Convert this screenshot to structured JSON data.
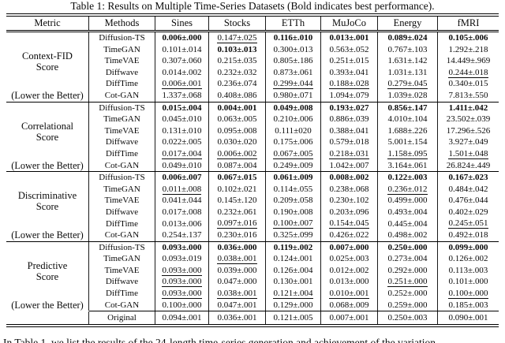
{
  "title": "Table 1: Results on Multiple Time-Series Datasets (Bold indicates best performance).",
  "body_text": "In Table 1, we list the results of the 24-length time-series generation and achievement of the variation",
  "table": {
    "headers": [
      "Metric",
      "Methods",
      "Sines",
      "Stocks",
      "ETTh",
      "MuJoCo",
      "Energy",
      "fMRI"
    ],
    "style_legend": {
      "b": "bold = best performance",
      "u": "underline = second best"
    },
    "sections": [
      {
        "metric_lines": [
          "Context-FID",
          "Score"
        ],
        "note": "(Lower the Better)",
        "rows": [
          {
            "method": "Diffusion-TS",
            "cells": [
              [
                "0.006±.000",
                "b"
              ],
              [
                "0.147±.025",
                "u"
              ],
              [
                "0.116±.010",
                "b"
              ],
              [
                "0.013±.001",
                "b"
              ],
              [
                "0.089±.024",
                "b"
              ],
              [
                "0.105±.006",
                "b"
              ]
            ]
          },
          {
            "method": "TimeGAN",
            "cells": [
              [
                "0.101±.014",
                ""
              ],
              [
                "0.103±.013",
                "b"
              ],
              [
                "0.300±.013",
                ""
              ],
              [
                "0.563±.052",
                ""
              ],
              [
                "0.767±.103",
                ""
              ],
              [
                "1.292±.218",
                ""
              ]
            ]
          },
          {
            "method": "TimeVAE",
            "cells": [
              [
                "0.307±.060",
                ""
              ],
              [
                "0.215±.035",
                ""
              ],
              [
                "0.805±.186",
                ""
              ],
              [
                "0.251±.015",
                ""
              ],
              [
                "1.631±.142",
                ""
              ],
              [
                "14.449±.969",
                ""
              ]
            ]
          },
          {
            "method": "Diffwave",
            "cells": [
              [
                "0.014±.002",
                ""
              ],
              [
                "0.232±.032",
                ""
              ],
              [
                "0.873±.061",
                ""
              ],
              [
                "0.393±.041",
                ""
              ],
              [
                "1.031±.131",
                ""
              ],
              [
                "0.244±.018",
                "u"
              ]
            ]
          },
          {
            "method": "DiffTime",
            "cells": [
              [
                "0.006±.001",
                "u"
              ],
              [
                "0.236±.074",
                ""
              ],
              [
                "0.299±.044",
                "u"
              ],
              [
                "0.188±.028",
                "u"
              ],
              [
                "0.279±.045",
                "u"
              ],
              [
                "0.340±.015",
                ""
              ]
            ]
          },
          {
            "method": "Cot-GAN",
            "cells": [
              [
                "1.337±.068",
                ""
              ],
              [
                "0.408±.086",
                ""
              ],
              [
                "0.980±.071",
                ""
              ],
              [
                "1.094±.079",
                ""
              ],
              [
                "1.039±.028",
                ""
              ],
              [
                "7.813±.550",
                ""
              ]
            ]
          }
        ]
      },
      {
        "metric_lines": [
          "Correlational",
          "Score"
        ],
        "note": "(Lower the Better)",
        "rows": [
          {
            "method": "Diffusion-TS",
            "cells": [
              [
                "0.015±.004",
                "b"
              ],
              [
                "0.004±.001",
                "b"
              ],
              [
                "0.049±.008",
                "b"
              ],
              [
                "0.193±.027",
                "b"
              ],
              [
                "0.856±.147",
                "b"
              ],
              [
                "1.411±.042",
                "b"
              ]
            ]
          },
          {
            "method": "TimeGAN",
            "cells": [
              [
                "0.045±.010",
                ""
              ],
              [
                "0.063±.005",
                ""
              ],
              [
                "0.210±.006",
                ""
              ],
              [
                "0.886±.039",
                ""
              ],
              [
                "4.010±.104",
                ""
              ],
              [
                "23.502±.039",
                ""
              ]
            ]
          },
          {
            "method": "TimeVAE",
            "cells": [
              [
                "0.131±.010",
                ""
              ],
              [
                "0.095±.008",
                ""
              ],
              [
                "0.111±020",
                ""
              ],
              [
                "0.388±.041",
                ""
              ],
              [
                "1.688±.226",
                ""
              ],
              [
                "17.296±.526",
                ""
              ]
            ]
          },
          {
            "method": "Diffwave",
            "cells": [
              [
                "0.022±.005",
                ""
              ],
              [
                "0.030±.020",
                ""
              ],
              [
                "0.175±.006",
                ""
              ],
              [
                "0.579±.018",
                ""
              ],
              [
                "5.001±.154",
                ""
              ],
              [
                "3.927±.049",
                ""
              ]
            ]
          },
          {
            "method": "DiffTime",
            "cells": [
              [
                "0.017±.004",
                "u"
              ],
              [
                "0.006±.002",
                "u"
              ],
              [
                "0.067±.005",
                "u"
              ],
              [
                "0.218±.031",
                "u"
              ],
              [
                "1.158±.095",
                "u"
              ],
              [
                "1.501±.048",
                "u"
              ]
            ]
          },
          {
            "method": "Cot-GAN",
            "cells": [
              [
                "0.049±.010",
                ""
              ],
              [
                "0.087±.004",
                ""
              ],
              [
                "0.249±.009",
                ""
              ],
              [
                "1.042±.007",
                ""
              ],
              [
                "3.164±.061",
                ""
              ],
              [
                "26.824±.449",
                ""
              ]
            ]
          }
        ]
      },
      {
        "metric_lines": [
          "Discriminative",
          "Score"
        ],
        "note": "(Lower the Better)",
        "rows": [
          {
            "method": "Diffusion-TS",
            "cells": [
              [
                "0.006±.007",
                "b"
              ],
              [
                "0.067±.015",
                "b"
              ],
              [
                "0.061±.009",
                "b"
              ],
              [
                "0.008±.002",
                "b"
              ],
              [
                "0.122±.003",
                "b"
              ],
              [
                "0.167±.023",
                "b"
              ]
            ]
          },
          {
            "method": "TimeGAN",
            "cells": [
              [
                "0.011±.008",
                "u"
              ],
              [
                "0.102±.021",
                ""
              ],
              [
                "0.114±.055",
                ""
              ],
              [
                "0.238±.068",
                ""
              ],
              [
                "0.236±.012",
                "u"
              ],
              [
                "0.484±.042",
                ""
              ]
            ]
          },
          {
            "method": "TimeVAE",
            "cells": [
              [
                "0.041±.044",
                ""
              ],
              [
                "0.145±.120",
                ""
              ],
              [
                "0.209±.058",
                ""
              ],
              [
                "0.230±.102",
                ""
              ],
              [
                "0.499±.000",
                ""
              ],
              [
                "0.476±.044",
                ""
              ]
            ]
          },
          {
            "method": "Diffwave",
            "cells": [
              [
                "0.017±.008",
                ""
              ],
              [
                "0.232±.061",
                ""
              ],
              [
                "0.190±.008",
                ""
              ],
              [
                "0.203±.096",
                ""
              ],
              [
                "0.493±.004",
                ""
              ],
              [
                "0.402±.029",
                ""
              ]
            ]
          },
          {
            "method": "DiffTime",
            "cells": [
              [
                "0.013±.006",
                ""
              ],
              [
                "0.097±.016",
                "u"
              ],
              [
                "0.100±.007",
                "u"
              ],
              [
                "0.154±.045",
                "u"
              ],
              [
                "0.445±.004",
                ""
              ],
              [
                "0.245±.051",
                "u"
              ]
            ]
          },
          {
            "method": "Cot-GAN",
            "cells": [
              [
                "0.254±.137",
                ""
              ],
              [
                "0.230±.016",
                ""
              ],
              [
                "0.325±.099",
                ""
              ],
              [
                "0.426±.022",
                ""
              ],
              [
                "0.498±.002",
                ""
              ],
              [
                "0.492±.018",
                ""
              ]
            ]
          }
        ]
      },
      {
        "metric_lines": [
          "Predictive",
          "Score"
        ],
        "note": "(Lower the Better)",
        "rows": [
          {
            "method": "Diffusion-TS",
            "cells": [
              [
                "0.093±.000",
                "b"
              ],
              [
                "0.036±.000",
                "b"
              ],
              [
                "0.119±.002",
                "b"
              ],
              [
                "0.007±.000",
                "b"
              ],
              [
                "0.250±.000",
                "b"
              ],
              [
                "0.099±.000",
                "b"
              ]
            ]
          },
          {
            "method": "TimeGAN",
            "cells": [
              [
                "0.093±.019",
                ""
              ],
              [
                "0.038±.001",
                "u"
              ],
              [
                "0.124±.001",
                ""
              ],
              [
                "0.025±.003",
                ""
              ],
              [
                "0.273±.004",
                ""
              ],
              [
                "0.126±.002",
                ""
              ]
            ]
          },
          {
            "method": "TimeVAE",
            "cells": [
              [
                "0.093±.000",
                "u"
              ],
              [
                "0.039±.000",
                ""
              ],
              [
                "0.126±.004",
                ""
              ],
              [
                "0.012±.002",
                ""
              ],
              [
                "0.292±.000",
                ""
              ],
              [
                "0.113±.003",
                ""
              ]
            ]
          },
          {
            "method": "Diffwave",
            "cells": [
              [
                "0.093±.000",
                "u"
              ],
              [
                "0.047±.000",
                ""
              ],
              [
                "0.130±.001",
                ""
              ],
              [
                "0.013±.000",
                ""
              ],
              [
                "0.251±.000",
                "u"
              ],
              [
                "0.101±.000",
                ""
              ]
            ]
          },
          {
            "method": "DiffTime",
            "cells": [
              [
                "0.093±.000",
                "u"
              ],
              [
                "0.038±.001",
                "u"
              ],
              [
                "0.121±.004",
                "u"
              ],
              [
                "0.010±.001",
                "u"
              ],
              [
                "0.252±.000",
                ""
              ],
              [
                "0.100±.000",
                "u"
              ]
            ]
          },
          {
            "method": "Cot-GAN",
            "cells": [
              [
                "0.100±.000",
                ""
              ],
              [
                "0.047±.001",
                ""
              ],
              [
                "0.129±.000",
                ""
              ],
              [
                "0.068±.009",
                ""
              ],
              [
                "0.259±.000",
                ""
              ],
              [
                "0.185±.003",
                ""
              ]
            ]
          }
        ]
      }
    ],
    "original": {
      "method": "Original",
      "cells": [
        "0.094±.001",
        "0.036±.001",
        "0.121±.005",
        "0.007±.001",
        "0.250±.003",
        "0.090±.001"
      ]
    }
  }
}
